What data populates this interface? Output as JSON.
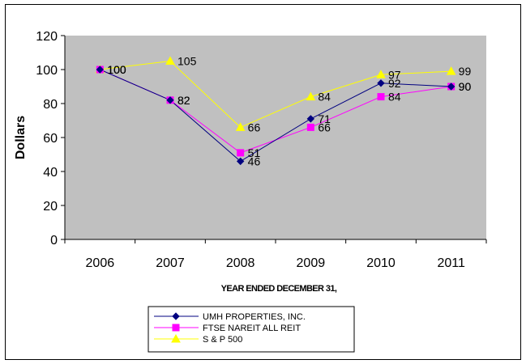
{
  "chart_data": {
    "type": "line",
    "xlabel": "YEAR ENDED DECEMBER 31,",
    "ylabel": "Dollars",
    "ylim": [
      0,
      120
    ],
    "yticks": [
      0,
      20,
      40,
      60,
      80,
      100,
      120
    ],
    "categories": [
      "2006",
      "2007",
      "2008",
      "2009",
      "2010",
      "2011"
    ],
    "grid": false,
    "legend_position": "bottom",
    "series": [
      {
        "name": "UMH PROPERTIES, INC.",
        "values": [
          100,
          82,
          46,
          71,
          92,
          90
        ],
        "color": "#000080",
        "marker": "diamond",
        "labels": [
          "100",
          "82",
          "46",
          "71",
          "92",
          "90"
        ]
      },
      {
        "name": "FTSE NAREIT ALL REIT",
        "values": [
          100,
          82,
          51,
          66,
          84,
          90
        ],
        "color": "#ff00ff",
        "marker": "square",
        "labels": [
          "100",
          "82",
          "51",
          "66",
          "84",
          "90"
        ]
      },
      {
        "name": "S & P 500",
        "values": [
          100,
          105,
          66,
          84,
          97,
          99
        ],
        "color": "#ffff00",
        "marker": "triangle",
        "labels": [
          "100",
          "105",
          "66",
          "84",
          "97",
          "99"
        ]
      }
    ],
    "plot_background": "#c0c0c0"
  }
}
